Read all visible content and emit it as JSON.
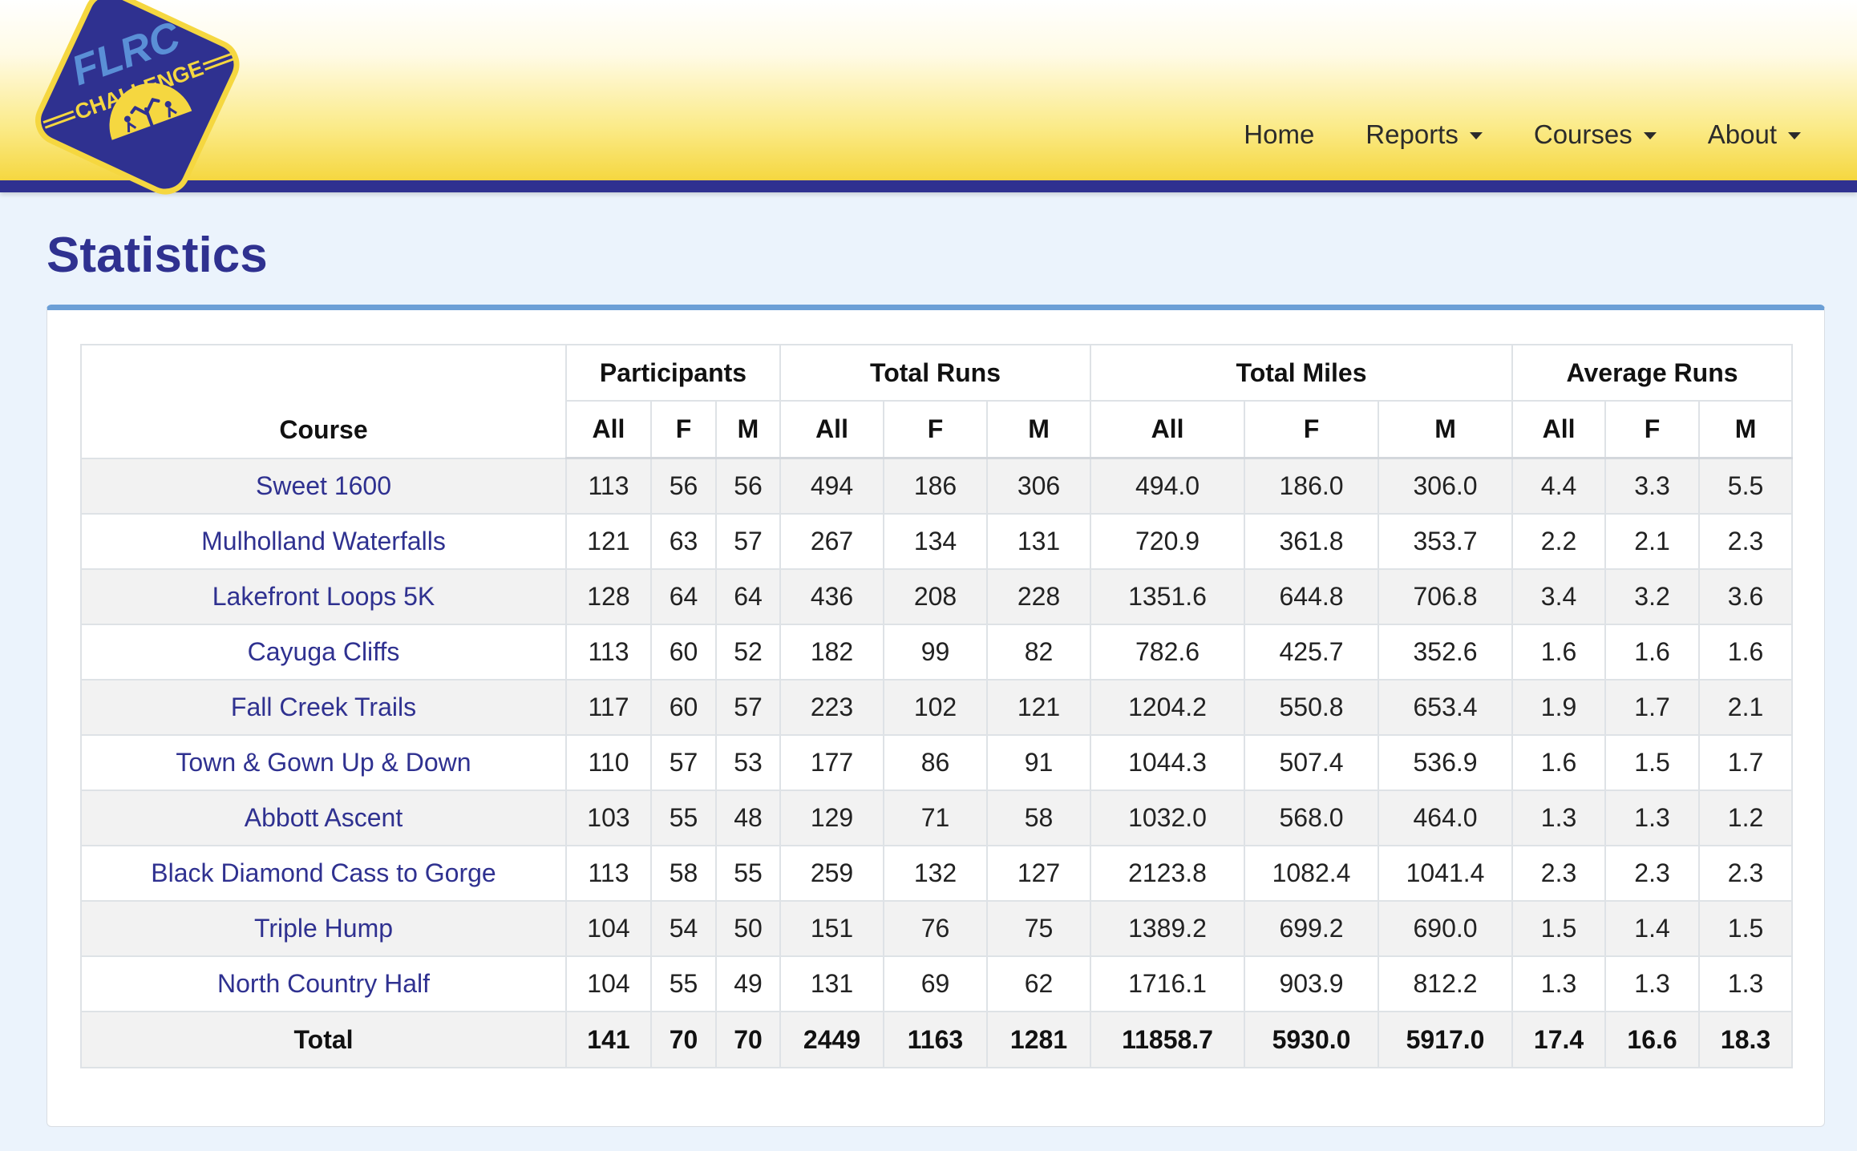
{
  "colors": {
    "brand_blue": "#2f3190",
    "brand_yellow": "#f5d740",
    "card_accent": "#6c9fd6",
    "link": "#2f3190"
  },
  "logo": {
    "line1": "FLRC",
    "line2": "CHALLENGE"
  },
  "nav": {
    "home": "Home",
    "reports": "Reports",
    "courses": "Courses",
    "about": "About"
  },
  "page_title": "Statistics",
  "table": {
    "course_header": "Course",
    "groups": [
      "Participants",
      "Total Runs",
      "Total Miles",
      "Average Runs"
    ],
    "subheaders": [
      "All",
      "F",
      "M",
      "All",
      "F",
      "M",
      "All",
      "F",
      "M",
      "All",
      "F",
      "M"
    ],
    "rows": [
      {
        "course": "Sweet 1600",
        "values": [
          "113",
          "56",
          "56",
          "494",
          "186",
          "306",
          "494.0",
          "186.0",
          "306.0",
          "4.4",
          "3.3",
          "5.5"
        ]
      },
      {
        "course": "Mulholland Waterfalls",
        "values": [
          "121",
          "63",
          "57",
          "267",
          "134",
          "131",
          "720.9",
          "361.8",
          "353.7",
          "2.2",
          "2.1",
          "2.3"
        ]
      },
      {
        "course": "Lakefront Loops 5K",
        "values": [
          "128",
          "64",
          "64",
          "436",
          "208",
          "228",
          "1351.6",
          "644.8",
          "706.8",
          "3.4",
          "3.2",
          "3.6"
        ]
      },
      {
        "course": "Cayuga Cliffs",
        "values": [
          "113",
          "60",
          "52",
          "182",
          "99",
          "82",
          "782.6",
          "425.7",
          "352.6",
          "1.6",
          "1.6",
          "1.6"
        ]
      },
      {
        "course": "Fall Creek Trails",
        "values": [
          "117",
          "60",
          "57",
          "223",
          "102",
          "121",
          "1204.2",
          "550.8",
          "653.4",
          "1.9",
          "1.7",
          "2.1"
        ]
      },
      {
        "course": "Town & Gown Up & Down",
        "values": [
          "110",
          "57",
          "53",
          "177",
          "86",
          "91",
          "1044.3",
          "507.4",
          "536.9",
          "1.6",
          "1.5",
          "1.7"
        ]
      },
      {
        "course": "Abbott Ascent",
        "values": [
          "103",
          "55",
          "48",
          "129",
          "71",
          "58",
          "1032.0",
          "568.0",
          "464.0",
          "1.3",
          "1.3",
          "1.2"
        ]
      },
      {
        "course": "Black Diamond Cass to Gorge",
        "values": [
          "113",
          "58",
          "55",
          "259",
          "132",
          "127",
          "2123.8",
          "1082.4",
          "1041.4",
          "2.3",
          "2.3",
          "2.3"
        ]
      },
      {
        "course": "Triple Hump",
        "values": [
          "104",
          "54",
          "50",
          "151",
          "76",
          "75",
          "1389.2",
          "699.2",
          "690.0",
          "1.5",
          "1.4",
          "1.5"
        ]
      },
      {
        "course": "North Country Half",
        "values": [
          "104",
          "55",
          "49",
          "131",
          "69",
          "62",
          "1716.1",
          "903.9",
          "812.2",
          "1.3",
          "1.3",
          "1.3"
        ]
      }
    ],
    "total": {
      "label": "Total",
      "values": [
        "141",
        "70",
        "70",
        "2449",
        "1163",
        "1281",
        "11858.7",
        "5930.0",
        "5917.0",
        "17.4",
        "16.6",
        "18.3"
      ]
    }
  }
}
